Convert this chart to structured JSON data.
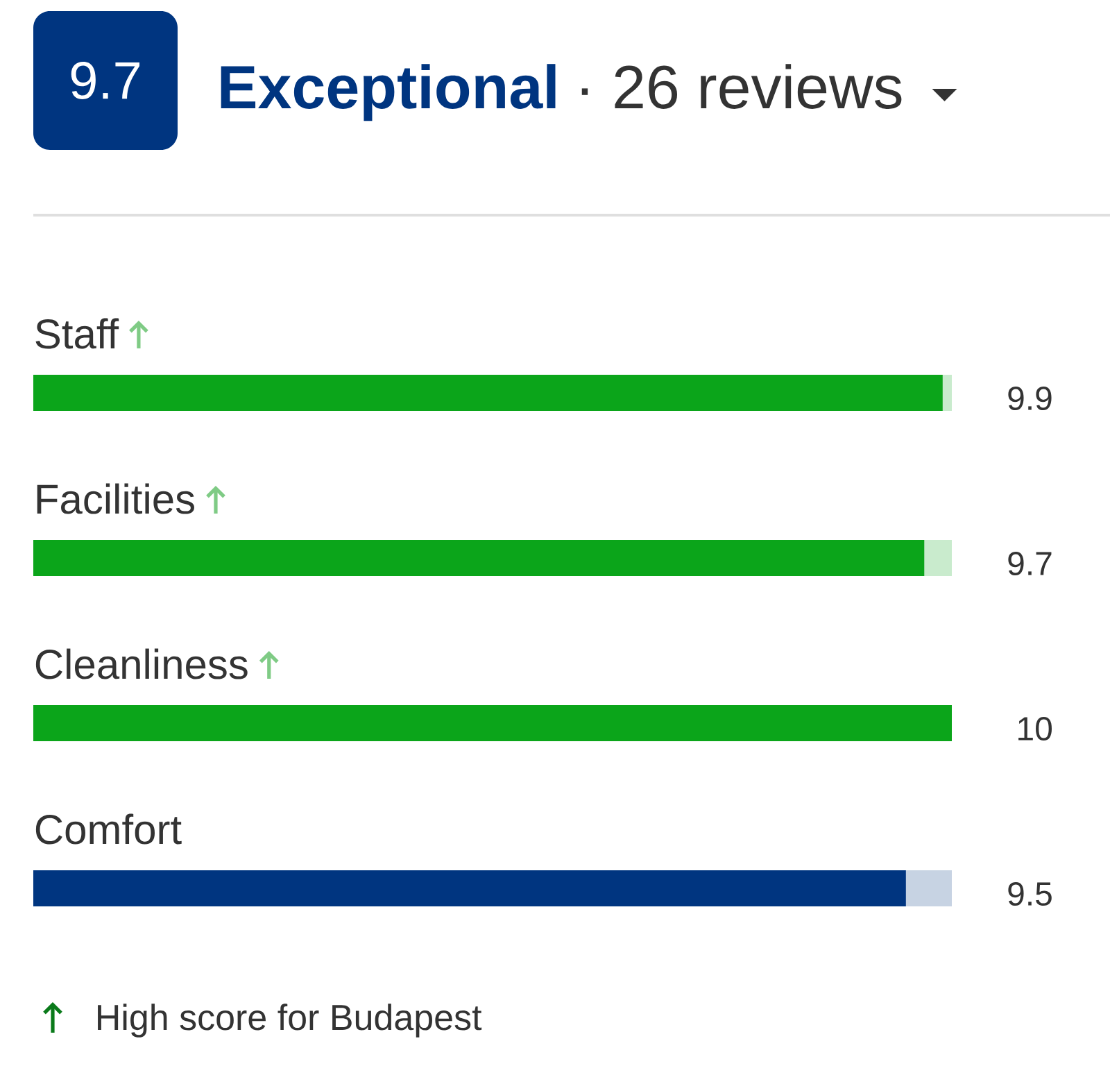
{
  "chart_data": {
    "type": "bar",
    "orientation": "horizontal",
    "title": "Exceptional",
    "subtitle": "· 26 reviews",
    "categories": [
      "Staff",
      "Facilities",
      "Cleanliness",
      "Comfort"
    ],
    "values": [
      9.9,
      9.7,
      10,
      9.5
    ],
    "colors": [
      "#0ba51a",
      "#0ba51a",
      "#0ba51a",
      "#003580"
    ],
    "xlim": [
      0,
      10
    ],
    "data_labels": true,
    "annotations": [
      "9.7",
      "High score for Budapest"
    ]
  }
}
